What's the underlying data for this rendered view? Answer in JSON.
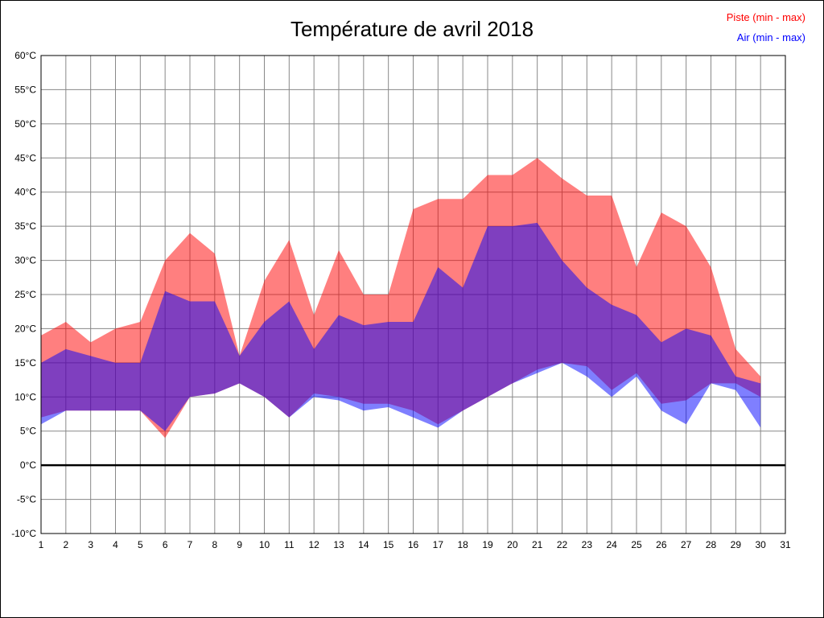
{
  "title": "Température de avril 2018",
  "legend": {
    "piste": "Piste (min - max)",
    "air": "Air (min - max)"
  },
  "colors": {
    "piste": "#ff0000",
    "air": "#0000ff",
    "band_opacity": 0.5,
    "grid": "#888888",
    "axis_frame": "#000000",
    "zero_line": "#000000",
    "background": "#ffffff",
    "text": "#000000"
  },
  "axes": {
    "y_unit": "°C",
    "y_ticks": [
      60,
      55,
      50,
      45,
      40,
      35,
      30,
      25,
      20,
      15,
      10,
      5,
      0,
      -5,
      -10
    ],
    "x_ticks": [
      1,
      2,
      3,
      4,
      5,
      6,
      7,
      8,
      9,
      10,
      11,
      12,
      13,
      14,
      15,
      16,
      17,
      18,
      19,
      20,
      21,
      22,
      23,
      24,
      25,
      26,
      27,
      28,
      29,
      30,
      31
    ]
  },
  "chart_data": {
    "type": "area",
    "title": "Température de avril 2018",
    "subtitle": "",
    "xlabel": "",
    "ylabel": "",
    "xlim": [
      1,
      31
    ],
    "ylim": [
      -10,
      60
    ],
    "grid": true,
    "legend_position": "top-right",
    "x": [
      1,
      2,
      3,
      4,
      5,
      6,
      7,
      8,
      9,
      10,
      11,
      12,
      13,
      14,
      15,
      16,
      17,
      18,
      19,
      20,
      21,
      22,
      23,
      24,
      25,
      26,
      27,
      28,
      29,
      30
    ],
    "series": [
      {
        "name": "Piste (min - max)",
        "band": true,
        "color": "#ff0000",
        "max": [
          19,
          21,
          18,
          20,
          21,
          30,
          34,
          31,
          16,
          27,
          33,
          22,
          31.5,
          25,
          25,
          37.5,
          39,
          39,
          42.5,
          42.5,
          45,
          42,
          39.5,
          39.5,
          29,
          37,
          35,
          29,
          17,
          13
        ],
        "min": [
          7,
          8,
          8,
          8,
          8,
          4,
          10,
          10.5,
          12,
          10,
          7,
          10.5,
          10,
          9,
          9,
          8,
          6,
          8,
          10,
          12,
          14,
          15,
          14.5,
          11,
          13.5,
          9,
          9.5,
          12,
          12,
          10
        ]
      },
      {
        "name": "Air (min - max)",
        "band": true,
        "color": "#0000ff",
        "max": [
          15,
          17,
          16,
          15,
          15,
          25.5,
          24,
          24,
          16,
          21,
          24,
          17,
          22,
          20.5,
          21,
          21,
          29,
          26,
          35,
          35,
          35.5,
          30,
          26,
          23.5,
          22,
          18,
          20,
          19,
          13,
          12
        ],
        "min": [
          6,
          8,
          8,
          8,
          8,
          5,
          10,
          10.5,
          12,
          10,
          7,
          10,
          9.5,
          8,
          8.5,
          7,
          5.5,
          8,
          10,
          12,
          13.5,
          15,
          13,
          10,
          13,
          8,
          6,
          12,
          11,
          5.5
        ]
      }
    ]
  }
}
